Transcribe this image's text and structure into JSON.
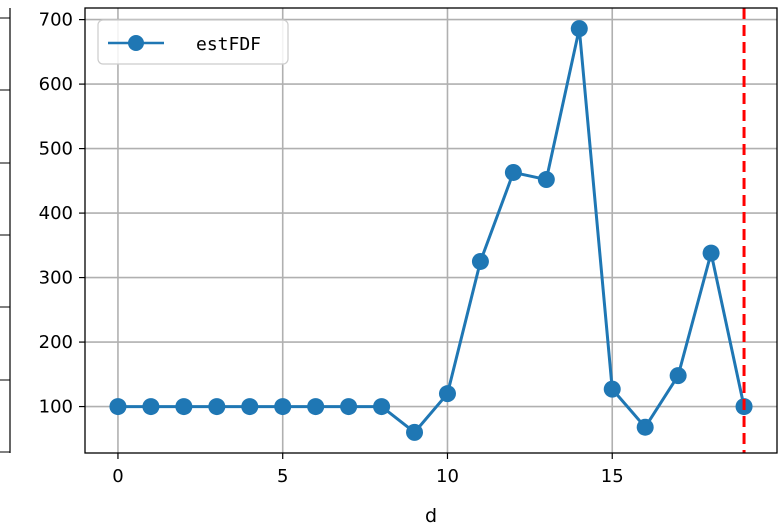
{
  "chart_data": {
    "type": "line",
    "xlabel": "d",
    "ylabel": "",
    "xlim": [
      -1.0,
      20.0
    ],
    "ylim": [
      28,
      718
    ],
    "xticks": [
      0,
      5,
      10,
      15
    ],
    "yticks": [
      100,
      200,
      300,
      400,
      500,
      600,
      700
    ],
    "x_tick_labels": [
      "0",
      "5",
      "10",
      "15"
    ],
    "y_tick_labels": [
      "100",
      "200",
      "300",
      "400",
      "500",
      "600",
      "700"
    ],
    "grid": true,
    "legend": {
      "position": "upper-left",
      "entries": [
        "estFDF"
      ]
    },
    "series": [
      {
        "name": "estFDF",
        "color": "#1f77b4",
        "marker": "circle",
        "x": [
          0,
          1,
          2,
          3,
          4,
          5,
          6,
          7,
          8,
          9,
          10,
          11,
          12,
          13,
          14,
          15,
          16,
          17,
          18,
          19
        ],
        "values": [
          100,
          100,
          100,
          100,
          100,
          100,
          100,
          100,
          100,
          60,
          120,
          325,
          463,
          452,
          686,
          127,
          68,
          148,
          338,
          100
        ]
      }
    ],
    "annotations": [
      {
        "type": "vertical-line",
        "x": 19,
        "color": "#ff0000",
        "style": "dashed"
      }
    ]
  }
}
